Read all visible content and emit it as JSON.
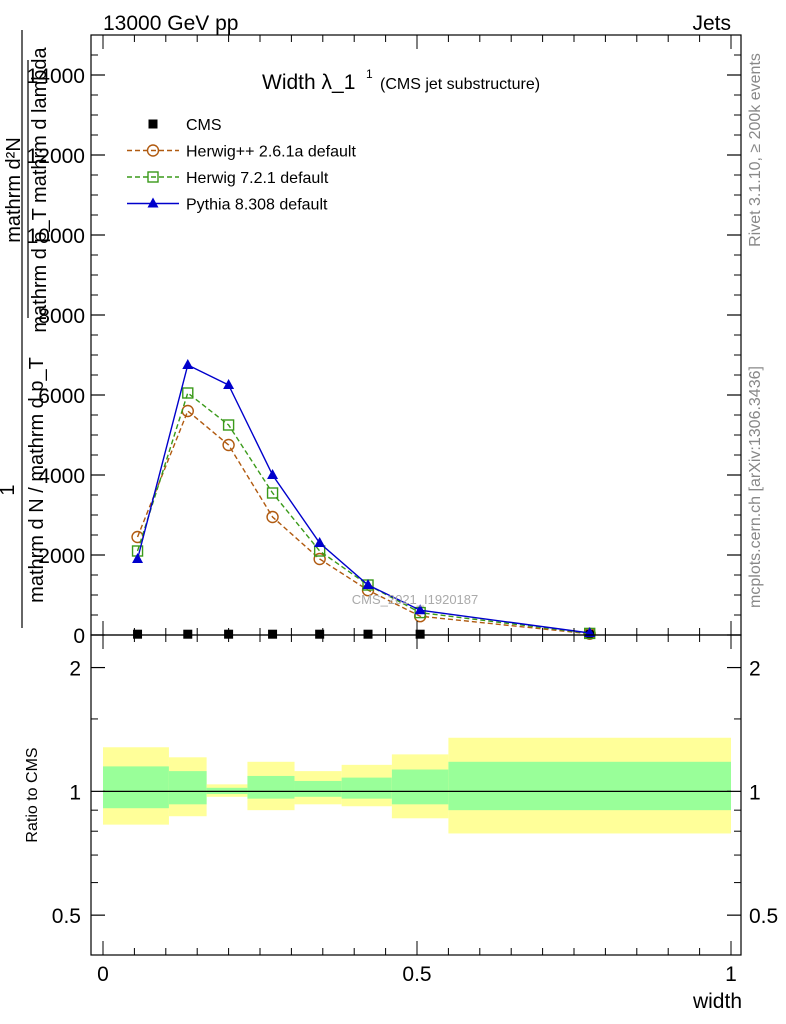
{
  "header": {
    "left": "13000 GeV pp",
    "right": "Jets"
  },
  "side": {
    "rivet": "Rivet 3.1.10, ≥ 200k events",
    "mcplots": "mcplots.cern.ch [arXiv:1306.3436]"
  },
  "chart_data": {
    "type": "line",
    "title": "Width λ_1",
    "title_sup": "1",
    "title_note": "(CMS jet substructure)",
    "watermark": "CMS_2021_I1920187",
    "xlabel": "width",
    "ylabel_main": {
      "numerator": "1",
      "denominator": "mathrm d N / mathrm d p_T",
      "frac_num": "mathrm d²N",
      "frac_den": "mathrm d p_T mathrm d lambda"
    },
    "ylabel_ratio": "Ratio to CMS",
    "xlim": [
      0,
      1
    ],
    "ylim_main": [
      0,
      15000
    ],
    "ylim_ratio": [
      0.4,
      2.4
    ],
    "x_ticks": [
      {
        "value": 0,
        "label": "0"
      },
      {
        "value": 0.5,
        "label": "0.5"
      },
      {
        "value": 1,
        "label": "1"
      }
    ],
    "y_ticks_main": [
      {
        "value": 0,
        "label": "0"
      },
      {
        "value": 2000,
        "label": "2000"
      },
      {
        "value": 4000,
        "label": "4000"
      },
      {
        "value": 6000,
        "label": "6000"
      },
      {
        "value": 8000,
        "label": "8000"
      },
      {
        "value": 10000,
        "label": "10000"
      },
      {
        "value": 12000,
        "label": "12000"
      },
      {
        "value": 14000,
        "label": "14000"
      }
    ],
    "y_ticks_ratio": [
      {
        "value": 0.5,
        "label": "0.5"
      },
      {
        "value": 1,
        "label": "1"
      },
      {
        "value": 2,
        "label": "2"
      }
    ],
    "x": [
      0.055,
      0.135,
      0.2,
      0.27,
      0.345,
      0.422,
      0.505,
      0.775
    ],
    "series": [
      {
        "name": "CMS",
        "style": "square-filled",
        "color": "#000000",
        "values": [
          20,
          20,
          20,
          20,
          20,
          20,
          20,
          20
        ]
      },
      {
        "name": "Herwig++ 2.6.1a default",
        "style": "circle-open",
        "color": "#b05a10",
        "dash": true,
        "values": [
          2450,
          5600,
          4750,
          2950,
          1900,
          1120,
          470,
          30
        ]
      },
      {
        "name": "Herwig 7.2.1 default",
        "style": "square-open",
        "color": "#3a9a1a",
        "dash": true,
        "values": [
          2100,
          6050,
          5250,
          3550,
          2100,
          1250,
          560,
          40
        ]
      },
      {
        "name": "Pythia 8.308 default",
        "style": "triangle-filled",
        "color": "#0000cc",
        "dash": false,
        "values": [
          1900,
          6750,
          6250,
          4000,
          2300,
          1250,
          620,
          50
        ]
      }
    ],
    "ratio_bands": [
      {
        "x0": 0.0,
        "x1": 0.105,
        "inner": [
          0.91,
          1.15
        ],
        "outer": [
          0.83,
          1.28
        ]
      },
      {
        "x0": 0.105,
        "x1": 0.165,
        "inner": [
          0.93,
          1.12
        ],
        "outer": [
          0.87,
          1.21
        ]
      },
      {
        "x0": 0.165,
        "x1": 0.23,
        "inner": [
          0.985,
          1.02
        ],
        "outer": [
          0.97,
          1.04
        ]
      },
      {
        "x0": 0.23,
        "x1": 0.305,
        "inner": [
          0.96,
          1.09
        ],
        "outer": [
          0.9,
          1.18
        ]
      },
      {
        "x0": 0.305,
        "x1": 0.38,
        "inner": [
          0.97,
          1.06
        ],
        "outer": [
          0.93,
          1.12
        ]
      },
      {
        "x0": 0.38,
        "x1": 0.46,
        "inner": [
          0.96,
          1.08
        ],
        "outer": [
          0.92,
          1.16
        ]
      },
      {
        "x0": 0.46,
        "x1": 0.55,
        "inner": [
          0.93,
          1.13
        ],
        "outer": [
          0.86,
          1.23
        ]
      },
      {
        "x0": 0.55,
        "x1": 1.0,
        "inner": [
          0.9,
          1.18
        ],
        "outer": [
          0.79,
          1.35
        ]
      }
    ],
    "colors": {
      "inner_band": "#99ff99",
      "outer_band": "#ffff99"
    }
  }
}
